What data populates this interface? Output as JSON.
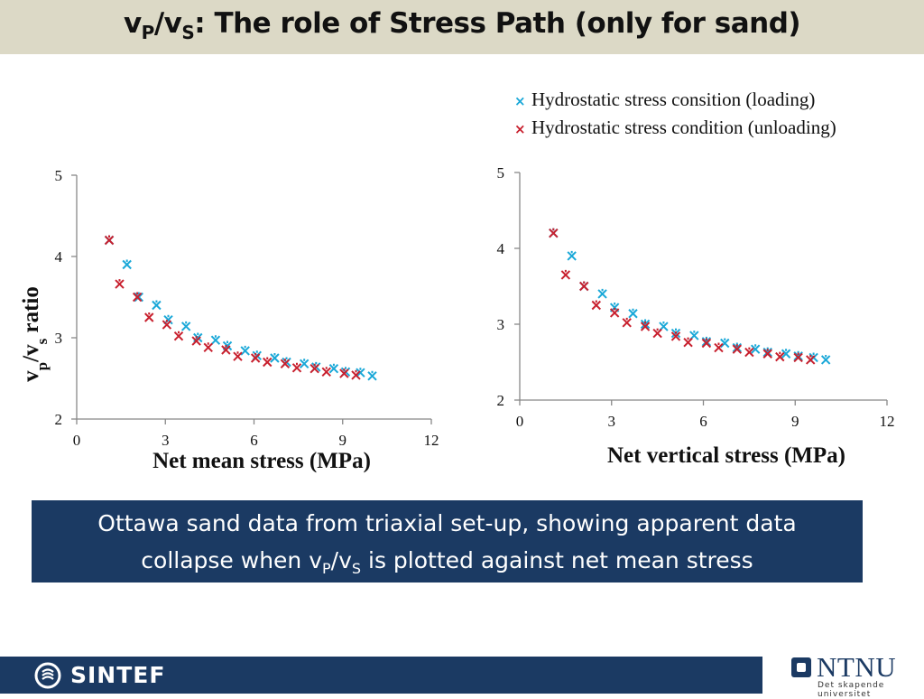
{
  "slide": {
    "title_main": "v",
    "title_sub1": "P",
    "title_slash": "/v",
    "title_sub2": "S",
    "title_rest": ": The role of Stress Path (only for sand)",
    "caption_line1": "Ottawa sand data from triaxial set-up, showing apparent data",
    "caption_line2_pre": "collapse when v",
    "caption_sub1": "P",
    "caption_slash": "/v",
    "caption_sub2": "S",
    "caption_line2_post": " is plotted against net mean stress",
    "footer_logo": "SINTEF",
    "ntnu_logo": "NTNU",
    "ntnu_tagline": "Det skapende universitet"
  },
  "colors": {
    "loading": "#1aa8d8",
    "unloading": "#c8202e",
    "title_bg": "#dcd9c6",
    "caption_bg": "#1b3a63"
  },
  "legend": [
    {
      "label": "Hydrostatic stress consition (loading)",
      "color": "#1aa8d8"
    },
    {
      "label": "Hydrostatic stress condition (unloading)",
      "color": "#c8202e"
    }
  ],
  "chart_data": [
    {
      "type": "scatter",
      "xlabel": "Net mean stress (MPa)",
      "ylabel": "vp/vs ratio",
      "xlim": [
        0,
        12
      ],
      "ylim": [
        2,
        5
      ],
      "xticks": [
        0,
        3,
        6,
        9,
        12
      ],
      "yticks": [
        2,
        3,
        4,
        5
      ],
      "series": [
        {
          "x": [
            1.1,
            1.7,
            2.1,
            2.7,
            3.1,
            3.7,
            4.1,
            4.7,
            5.1,
            5.7,
            6.1,
            6.7,
            7.1,
            7.7,
            8.1,
            8.7,
            9.1,
            9.6,
            10.0
          ],
          "y": [
            4.2,
            3.9,
            3.5,
            3.4,
            3.22,
            3.14,
            3.0,
            2.97,
            2.9,
            2.84,
            2.78,
            2.75,
            2.7,
            2.68,
            2.64,
            2.62,
            2.58,
            2.57,
            2.53
          ]
        },
        {
          "x": [
            1.1,
            1.45,
            2.05,
            2.45,
            3.05,
            3.45,
            4.05,
            4.45,
            5.05,
            5.45,
            6.05,
            6.45,
            7.05,
            7.45,
            8.05,
            8.45,
            9.05,
            9.45
          ],
          "y": [
            4.2,
            3.66,
            3.5,
            3.25,
            3.16,
            3.02,
            2.96,
            2.88,
            2.85,
            2.77,
            2.75,
            2.7,
            2.68,
            2.63,
            2.62,
            2.58,
            2.56,
            2.54
          ]
        }
      ]
    },
    {
      "type": "scatter",
      "xlabel": "Net vertical stress (MPa)",
      "ylabel": "",
      "xlim": [
        0,
        12
      ],
      "ylim": [
        2,
        5
      ],
      "xticks": [
        0,
        3,
        6,
        9,
        12
      ],
      "yticks": [
        2,
        3,
        4,
        5
      ],
      "series": [
        {
          "x": [
            1.1,
            1.7,
            2.1,
            2.7,
            3.1,
            3.7,
            4.1,
            4.7,
            5.1,
            5.7,
            6.1,
            6.7,
            7.1,
            7.7,
            8.1,
            8.7,
            9.1,
            9.6,
            10.0
          ],
          "y": [
            4.2,
            3.9,
            3.5,
            3.4,
            3.22,
            3.14,
            3.0,
            2.97,
            2.88,
            2.85,
            2.77,
            2.75,
            2.69,
            2.67,
            2.63,
            2.61,
            2.58,
            2.56,
            2.53
          ]
        },
        {
          "x": [
            1.1,
            1.5,
            2.1,
            2.5,
            3.1,
            3.5,
            4.1,
            4.5,
            5.1,
            5.5,
            6.1,
            6.5,
            7.1,
            7.5,
            8.1,
            8.5,
            9.1,
            9.5
          ],
          "y": [
            4.2,
            3.65,
            3.5,
            3.25,
            3.15,
            3.02,
            2.97,
            2.88,
            2.84,
            2.76,
            2.75,
            2.69,
            2.67,
            2.63,
            2.61,
            2.57,
            2.56,
            2.53
          ]
        }
      ]
    }
  ]
}
